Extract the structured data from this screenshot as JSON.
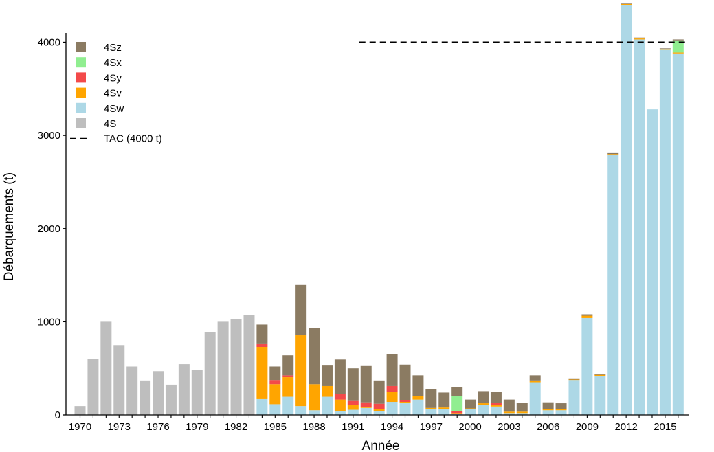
{
  "chart_data": {
    "type": "bar",
    "stacked": true,
    "xlabel": "Année",
    "ylabel": "Débarquements (t)",
    "ylim": [
      0,
      4400
    ],
    "y_ticks": [
      "0",
      "1000",
      "2000",
      "3000",
      "4000"
    ],
    "y_tick_values": [
      0,
      1000,
      2000,
      3000,
      4000
    ],
    "x_tick_years": [
      1970,
      1973,
      1976,
      1979,
      1982,
      1985,
      1988,
      1991,
      1994,
      1997,
      2000,
      2003,
      2006,
      2009,
      2012,
      2015
    ],
    "grid": false,
    "legend_position": "top-left",
    "categories": [
      1970,
      1971,
      1972,
      1973,
      1974,
      1975,
      1976,
      1977,
      1978,
      1979,
      1980,
      1981,
      1982,
      1983,
      1984,
      1985,
      1986,
      1987,
      1988,
      1989,
      1990,
      1991,
      1992,
      1993,
      1994,
      1995,
      1996,
      1997,
      1998,
      1999,
      2000,
      2001,
      2002,
      2003,
      2004,
      2005,
      2006,
      2007,
      2008,
      2009,
      2010,
      2011,
      2012,
      2013,
      2014,
      2015,
      2016
    ],
    "series": [
      {
        "name": "4S",
        "color": "#bebebe",
        "values": [
          95,
          600,
          1000,
          750,
          520,
          370,
          470,
          325,
          545,
          485,
          890,
          1000,
          1025,
          1075,
          0,
          0,
          0,
          0,
          0,
          0,
          0,
          0,
          0,
          0,
          0,
          0,
          0,
          0,
          0,
          0,
          0,
          0,
          0,
          0,
          0,
          0,
          0,
          0,
          0,
          0,
          0,
          0,
          0,
          0,
          0,
          0,
          0
        ]
      },
      {
        "name": "4Sw",
        "color": "#add8e6",
        "values": [
          0,
          0,
          0,
          0,
          0,
          0,
          0,
          0,
          0,
          0,
          0,
          0,
          0,
          0,
          170,
          115,
          195,
          95,
          50,
          195,
          40,
          55,
          75,
          40,
          140,
          125,
          165,
          65,
          60,
          10,
          60,
          110,
          90,
          20,
          20,
          350,
          50,
          50,
          375,
          1040,
          420,
          2790,
          4400,
          4030,
          3280,
          3920,
          3880
        ]
      },
      {
        "name": "4Sv",
        "color": "#ffa500",
        "values": [
          0,
          0,
          0,
          0,
          0,
          0,
          0,
          0,
          0,
          0,
          0,
          0,
          0,
          0,
          560,
          215,
          210,
          760,
          280,
          115,
          125,
          55,
          10,
          20,
          105,
          15,
          35,
          10,
          20,
          10,
          10,
          15,
          15,
          15,
          15,
          20,
          10,
          15,
          5,
          25,
          10,
          10,
          10,
          10,
          0,
          10,
          10
        ]
      },
      {
        "name": "4Sy",
        "color": "#f34a4a",
        "values": [
          0,
          0,
          0,
          0,
          0,
          0,
          0,
          0,
          0,
          0,
          0,
          0,
          0,
          0,
          30,
          45,
          20,
          0,
          0,
          0,
          60,
          40,
          50,
          60,
          65,
          15,
          0,
          0,
          0,
          20,
          0,
          0,
          25,
          0,
          0,
          0,
          0,
          0,
          0,
          0,
          0,
          0,
          0,
          0,
          0,
          0,
          0
        ]
      },
      {
        "name": "4Sx",
        "color": "#90ee90",
        "values": [
          0,
          0,
          0,
          0,
          0,
          0,
          0,
          0,
          0,
          0,
          0,
          0,
          0,
          0,
          0,
          0,
          0,
          0,
          0,
          0,
          0,
          0,
          0,
          0,
          0,
          0,
          0,
          0,
          0,
          160,
          0,
          0,
          0,
          0,
          0,
          0,
          0,
          0,
          0,
          0,
          0,
          0,
          0,
          0,
          0,
          0,
          130
        ]
      },
      {
        "name": "4Sz",
        "color": "#8b7b62",
        "values": [
          0,
          0,
          0,
          0,
          0,
          0,
          0,
          0,
          0,
          0,
          0,
          0,
          0,
          0,
          210,
          145,
          215,
          540,
          600,
          220,
          370,
          350,
          390,
          250,
          340,
          385,
          225,
          200,
          160,
          95,
          95,
          130,
          120,
          130,
          95,
          55,
          75,
          60,
          5,
          15,
          5,
          10,
          5,
          10,
          0,
          5,
          10
        ]
      }
    ],
    "reference_line": {
      "label": "TAC (4000 t)",
      "value": 4000,
      "x_start": 1992,
      "x_end": 2016
    },
    "legend_items": [
      {
        "name": "4Sz",
        "color": "#8b7b62"
      },
      {
        "name": "4Sx",
        "color": "#90ee90"
      },
      {
        "name": "4Sy",
        "color": "#f34a4a"
      },
      {
        "name": "4Sv",
        "color": "#ffa500"
      },
      {
        "name": "4Sw",
        "color": "#add8e6"
      },
      {
        "name": "4S",
        "color": "#bebebe"
      }
    ],
    "legend_tac_label": "TAC (4000 t)"
  }
}
